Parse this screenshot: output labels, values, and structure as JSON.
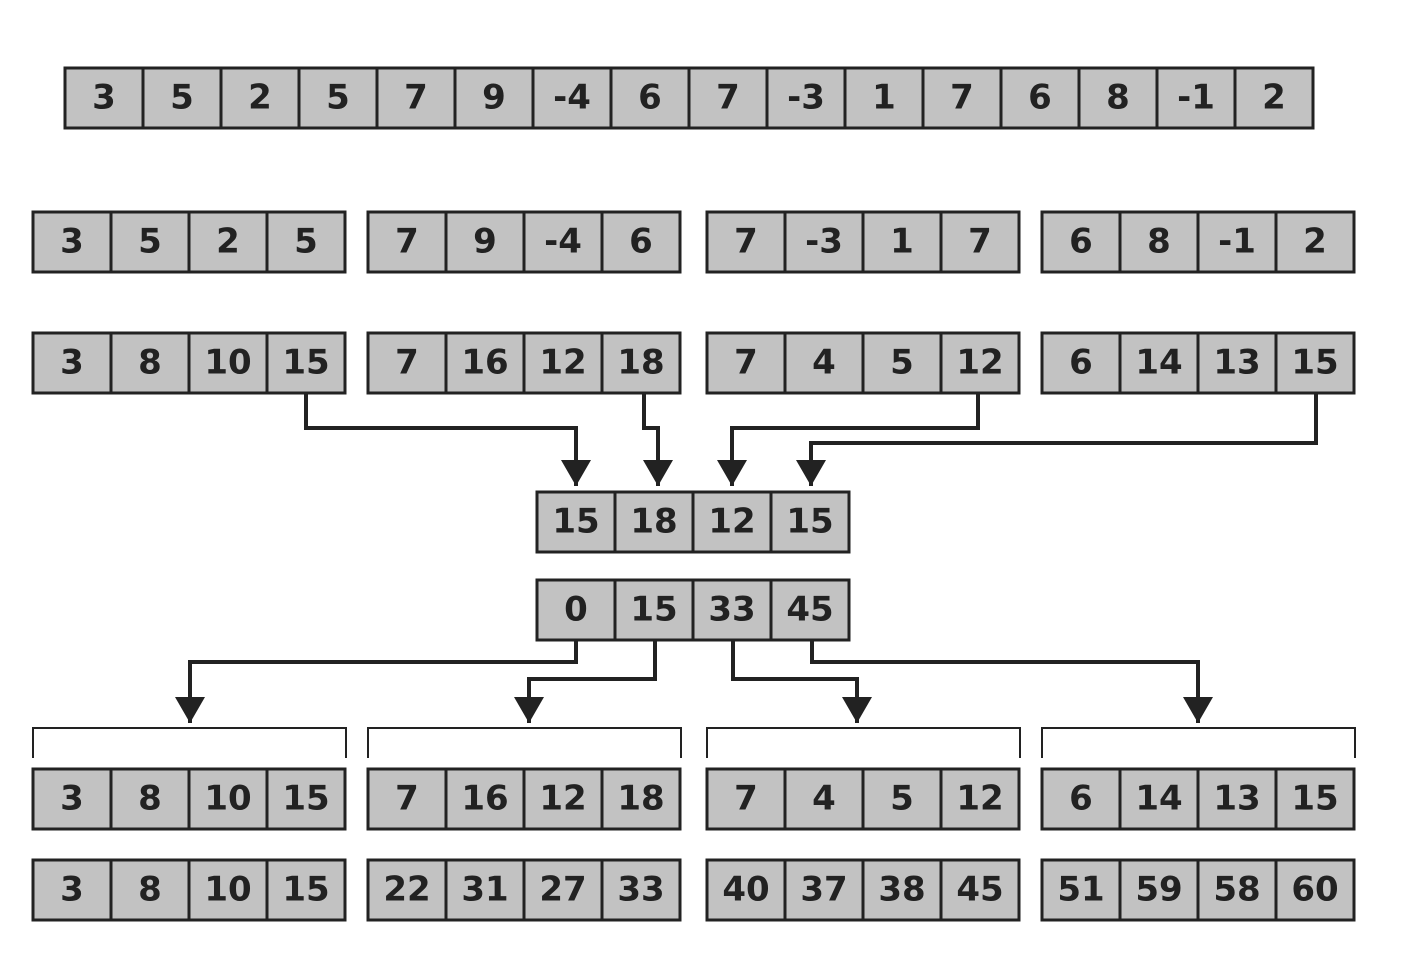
{
  "input": [
    "3",
    "5",
    "2",
    "5",
    "7",
    "9",
    "-4",
    "6",
    "7",
    "-3",
    "1",
    "7",
    "6",
    "8",
    "-1",
    "2"
  ],
  "blocks": [
    [
      "3",
      "5",
      "2",
      "5"
    ],
    [
      "7",
      "9",
      "-4",
      "6"
    ],
    [
      "7",
      "-3",
      "1",
      "7"
    ],
    [
      "6",
      "8",
      "-1",
      "2"
    ]
  ],
  "block_scans": [
    [
      "3",
      "8",
      "10",
      "15"
    ],
    [
      "7",
      "16",
      "12",
      "18"
    ],
    [
      "7",
      "4",
      "5",
      "12"
    ],
    [
      "6",
      "14",
      "13",
      "15"
    ]
  ],
  "block_sums": [
    "15",
    "18",
    "12",
    "15"
  ],
  "block_offsets": [
    "0",
    "15",
    "33",
    "45"
  ],
  "grouped_scans": [
    [
      "3",
      "8",
      "10",
      "15"
    ],
    [
      "7",
      "16",
      "12",
      "18"
    ],
    [
      "7",
      "4",
      "5",
      "12"
    ],
    [
      "6",
      "14",
      "13",
      "15"
    ]
  ],
  "final": [
    [
      "3",
      "8",
      "10",
      "15"
    ],
    [
      "22",
      "31",
      "27",
      "33"
    ],
    [
      "40",
      "37",
      "38",
      "45"
    ],
    [
      "51",
      "59",
      "58",
      "60"
    ]
  ],
  "colors": {
    "cell_fill": "#c2c2c2",
    "stroke": "#222222",
    "background": "#ffffff"
  }
}
